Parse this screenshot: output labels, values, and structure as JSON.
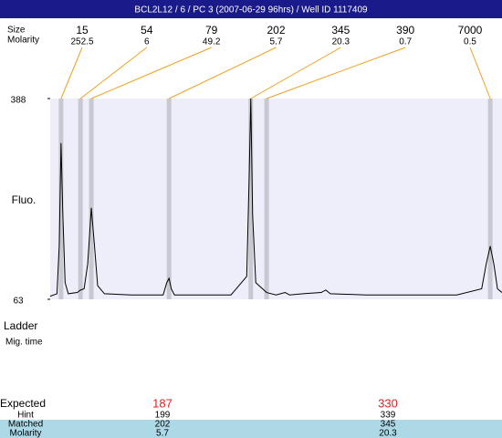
{
  "chart_data": {
    "type": "line",
    "title": "BCL2L12 / 6 / PC 3 (2007-06-29 96hrs) / Well ID 1117409",
    "ylabel": "Fluo.",
    "ylim": [
      63,
      388
    ],
    "yticks": [
      63,
      388
    ],
    "xlim": [
      0,
      100
    ],
    "x": [
      0,
      1.5,
      2.0,
      2.4,
      2.8,
      3.3,
      4,
      6.0,
      6.7,
      7.5,
      8.3,
      9.1,
      9.8,
      10.5,
      12,
      18,
      25,
      25.8,
      26.3,
      26.8,
      27.5,
      40,
      43.5,
      44.0,
      44.4,
      44.8,
      45.5,
      47,
      47.9,
      50,
      52,
      53,
      56,
      60,
      61,
      62,
      70,
      90,
      95.5,
      96.5,
      97.4,
      98.2,
      99,
      100
    ],
    "series": [
      {
        "color": "#000000",
        "values": [
          68,
          72,
          150,
          316,
          200,
          90,
          72,
          74,
          78,
          80,
          120,
          211,
          150,
          85,
          72,
          70,
          70,
          90,
          97,
          80,
          70,
          70,
          100,
          250,
          388,
          200,
          90,
          80,
          74,
          70,
          74,
          70,
          72,
          74,
          78,
          72,
          70,
          70,
          80,
          120,
          149,
          120,
          80,
          74
        ]
      }
    ],
    "peaks": {
      "size_label": "Size",
      "molarity_label": "Molarity",
      "x": [
        2.4,
        6.7,
        9.1,
        26.3,
        44.4,
        47.9,
        97.4
      ],
      "sizes": [
        15,
        54,
        79,
        202,
        345,
        390,
        7000
      ],
      "molarity": [
        252.5,
        6,
        49.2,
        5.7,
        20.3,
        0.7,
        0.5
      ]
    }
  },
  "ladder": {
    "label": "Ladder",
    "sublabel": "Mig. time"
  },
  "results": {
    "row_labels": [
      "Expected",
      "Hint",
      "Matched",
      "Molarity"
    ],
    "columns": [
      [
        187,
        199,
        202,
        5.7
      ],
      [
        330,
        339,
        345,
        20.3
      ]
    ]
  }
}
